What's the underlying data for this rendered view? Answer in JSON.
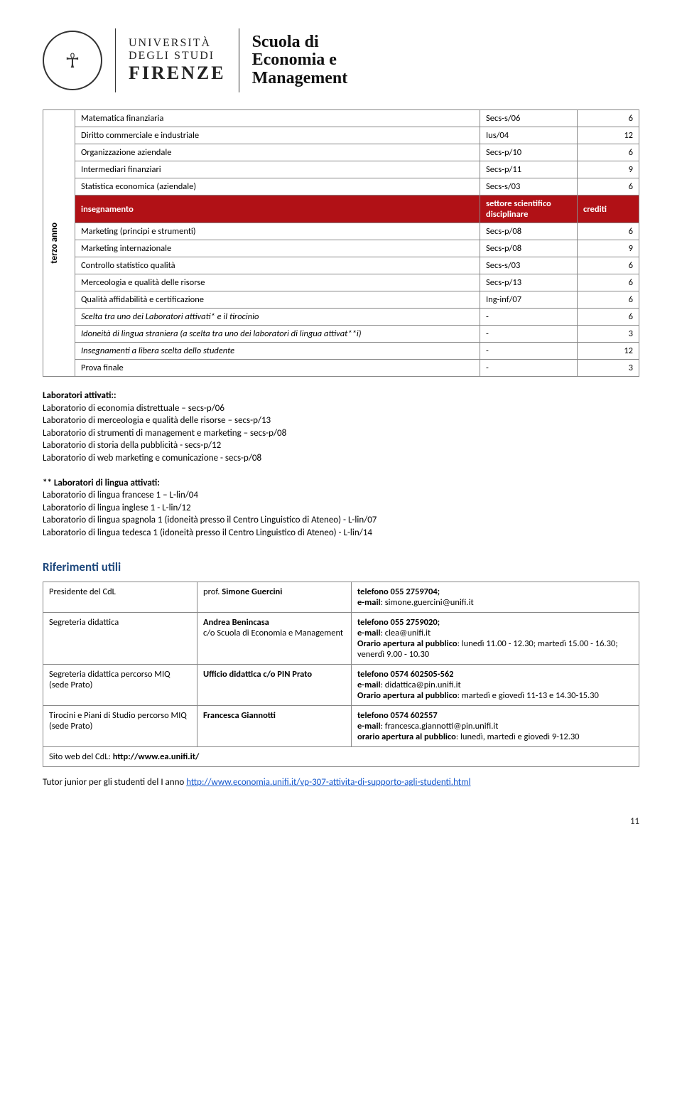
{
  "header": {
    "uni_line1": "UNIVERSITÀ",
    "uni_line2": "DEGLI STUDI",
    "uni_line3": "FIRENZE",
    "school_line1": "Scuola di",
    "school_line2": "Economia e",
    "school_line3": "Management"
  },
  "table": {
    "side_label": "terzo anno",
    "before_header": [
      {
        "name": "Matematica finanziaria",
        "sector": "Secs-s/06",
        "credits": "6"
      },
      {
        "name": "Diritto commerciale e industriale",
        "sector": "Ius/04",
        "credits": "12"
      },
      {
        "name": "Organizzazione aziendale",
        "sector": "Secs-p/10",
        "credits": "6"
      },
      {
        "name": "Intermediari finanziari",
        "sector": "Secs-p/11",
        "credits": "9"
      },
      {
        "name": "Statistica economica (aziendale)",
        "sector": "Secs-s/03",
        "credits": "6"
      }
    ],
    "header_labels": {
      "col1": "insegnamento",
      "col2": "settore scientifico disciplinare",
      "col3": "crediti"
    },
    "after_header": [
      {
        "name": "Marketing (principi e strumenti)",
        "sector": "Secs-p/08",
        "credits": "6"
      },
      {
        "name": "Marketing internazionale",
        "sector": "Secs-p/08",
        "credits": "9"
      },
      {
        "name": "Controllo statistico qualità",
        "sector": "Secs-s/03",
        "credits": "6"
      },
      {
        "name": "Merceologia e qualità delle risorse",
        "sector": "Secs-p/13",
        "credits": "6"
      },
      {
        "name": "Qualità affidabilità e certificazione",
        "sector": "Ing-inf/07",
        "credits": "6"
      },
      {
        "name": "Scelta tra uno dei Laboratori attivati* e il tirocinio",
        "sector": "-",
        "credits": "6",
        "italic": true
      },
      {
        "name": "Idoneità di lingua straniera (a scelta tra uno dei laboratori di lingua attivat**i)",
        "sector": "-",
        "credits": "3",
        "italic": true
      },
      {
        "name": "Insegnamenti a libera scelta dello studente",
        "sector": "-",
        "credits": "12",
        "italic": true
      },
      {
        "name": "Prova finale",
        "sector": "-",
        "credits": "3"
      }
    ]
  },
  "labs": {
    "title1": "Laboratori attivati::",
    "list1": [
      "Laboratorio di economia distrettuale – secs-p/06",
      "Laboratorio di merceologia e qualità delle risorse – secs-p/13",
      "Laboratorio di strumenti di management e marketing – secs-p/08",
      "Laboratorio di storia della pubblicità - secs-p/12",
      "Laboratorio di web marketing e comunicazione -  secs-p/08"
    ],
    "title2": "** Laboratori di lingua attivati:",
    "list2": [
      "Laboratorio di lingua francese 1 – L-lin/04",
      "Laboratorio di lingua inglese 1 - L-lin/12",
      "Laboratorio di lingua spagnola 1 (idoneità presso il Centro Linguistico di Ateneo) - L-lin/07",
      "Laboratorio di lingua tedesca 1 (idoneità presso il Centro Linguistico di Ateneo) - L-lin/14"
    ]
  },
  "rif_title": "Riferimenti utili",
  "contacts": [
    {
      "role": "Presidente del CdL",
      "person": "prof. Simone Guercini",
      "info_bold": "telefono 055 2759704;",
      "info_rest": "e-mail: simone.guercini@unifi.it"
    },
    {
      "role": "Segreteria didattica",
      "person_lines": [
        "Andrea Benincasa",
        "c/o Scuola di Economia e Management"
      ],
      "info_bold": "telefono 055 2759020;",
      "info_rest": "e-mail: clea@unifi.it",
      "info_orari_label": "Orario apertura al pubblico",
      "info_orari": ": lunedì 11.00 - 12.30; martedì 15.00 - 16.30; venerdì 9.00 - 10.30"
    },
    {
      "role": "Segreteria didattica percorso MIQ (sede Prato)",
      "person_lines": [
        "Ufficio didattica c/o PIN Prato"
      ],
      "info_bold": "telefono 0574 602505-562",
      "info_rest": "e-mail: didattica@pin.unifi.it",
      "info_orari_label": "Orario apertura al pubblico",
      "info_orari": ": martedì e giovedì 11-13 e 14.30-15.30"
    },
    {
      "role": "Tirocini e Piani di Studio percorso MIQ (sede Prato)",
      "person_lines": [
        "Francesca Giannotti"
      ],
      "info_bold": "telefono 0574 602557",
      "info_rest": "e-mail: francesca.giannotti@pin.unifi.it",
      "info_orari_label": "orario apertura al pubblico",
      "info_orari": ": lunedì, martedì e giovedì 9-12.30"
    }
  ],
  "site_label": "Sito web del CdL: ",
  "site_url": "http://www.ea.unifi.it/",
  "tutor_prefix": "Tutor junior per gli studenti del I anno ",
  "tutor_link": "http://www.economia.unifi.it/vp-307-attivita-di-supporto-agli-studenti.html",
  "page_number": "11",
  "colors": {
    "header_bg": "#b11116",
    "header_fg": "#ffffff",
    "rif_title": "#1f497d",
    "link": "#1155cc",
    "border": "#888888"
  }
}
